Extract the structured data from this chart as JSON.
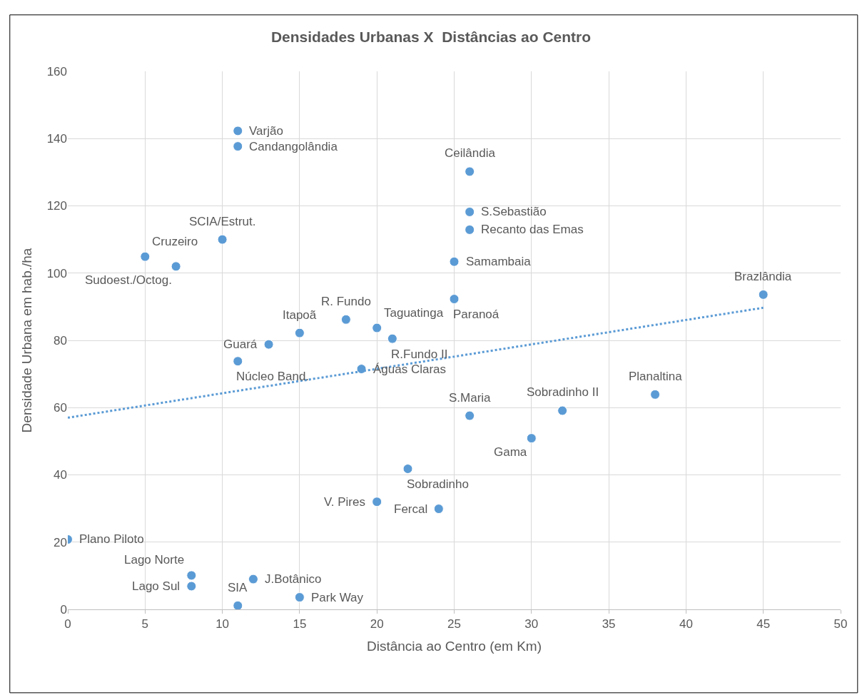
{
  "chart_data": {
    "type": "scatter",
    "title": "Densidades Urbanas X  Distâncias ao Centro",
    "xlabel": "Distância ao Centro (em Km)",
    "ylabel": "Densidade Urbana em hab./ha",
    "xlim": [
      0,
      50
    ],
    "xticks": [
      0,
      5,
      10,
      15,
      20,
      25,
      30,
      35,
      40,
      45,
      50
    ],
    "ylim": [
      0,
      160
    ],
    "yticks": [
      0,
      20,
      40,
      60,
      80,
      100,
      120,
      140,
      160
    ],
    "grid": true,
    "marker": "circle",
    "series": [
      {
        "color": "#5b9bd5",
        "x": [
          0,
          5,
          7,
          10,
          11,
          11,
          13,
          11,
          15,
          18,
          20,
          21,
          19,
          25,
          25,
          26,
          26,
          26,
          45,
          38,
          32,
          26,
          30,
          22,
          20,
          24,
          8,
          8,
          12,
          11,
          15
        ],
        "values": [
          20.8,
          104.9,
          102.0,
          110.0,
          142.3,
          137.7,
          78.8,
          73.8,
          82.2,
          86.2,
          83.7,
          80.5,
          71.5,
          92.3,
          103.4,
          112.9,
          118.2,
          130.2,
          93.6,
          63.9,
          59.1,
          57.6,
          50.9,
          41.8,
          32.0,
          29.9,
          10.1,
          6.9,
          9.0,
          1.1,
          3.6
        ]
      },
      {
        "type": "line",
        "color": "#5b9bd5",
        "line_style": "dotted",
        "marker": "none",
        "x": [
          0,
          45
        ],
        "values": [
          57.0,
          89.7
        ]
      }
    ],
    "annotations": [
      {
        "text": "Plano Piloto",
        "x": 0,
        "y": 20.8
      },
      {
        "text": "Cruzeiro",
        "x": 5,
        "y": 104.9
      },
      {
        "text": "Sudoest./Octog.",
        "x": 7,
        "y": 102.0
      },
      {
        "text": "SCIA/Estrut.",
        "x": 10,
        "y": 110.0
      },
      {
        "text": "Varjão",
        "x": 11,
        "y": 142.3
      },
      {
        "text": "Candangolândia",
        "x": 11,
        "y": 137.7
      },
      {
        "text": "Guará",
        "x": 13,
        "y": 78.8
      },
      {
        "text": "Núcleo Band.",
        "x": 11,
        "y": 73.8
      },
      {
        "text": "Itapoã",
        "x": 15,
        "y": 82.2
      },
      {
        "text": "R. Fundo",
        "x": 18,
        "y": 86.2
      },
      {
        "text": "Taguatinga",
        "x": 20,
        "y": 83.7
      },
      {
        "text": "R.Fundo II",
        "x": 21,
        "y": 80.5
      },
      {
        "text": "Águas Claras",
        "x": 19,
        "y": 71.5
      },
      {
        "text": "Paranoá",
        "x": 25,
        "y": 92.3
      },
      {
        "text": "Samambaia",
        "x": 25,
        "y": 103.4
      },
      {
        "text": "Recanto das Emas",
        "x": 26,
        "y": 112.9
      },
      {
        "text": "S.Sebastião",
        "x": 26,
        "y": 118.2
      },
      {
        "text": "Ceilândia",
        "x": 26,
        "y": 130.2
      },
      {
        "text": "Brazlândia",
        "x": 45,
        "y": 93.6
      },
      {
        "text": "Planaltina",
        "x": 38,
        "y": 63.9
      },
      {
        "text": "Sobradinho II",
        "x": 32,
        "y": 59.1
      },
      {
        "text": "S.Maria",
        "x": 26,
        "y": 57.6
      },
      {
        "text": "Gama",
        "x": 30,
        "y": 50.9
      },
      {
        "text": "Sobradinho",
        "x": 22,
        "y": 41.8
      },
      {
        "text": "V. Pires",
        "x": 20,
        "y": 32.0
      },
      {
        "text": "Fercal",
        "x": 24,
        "y": 29.9
      },
      {
        "text": "Lago Norte",
        "x": 8,
        "y": 10.1
      },
      {
        "text": "Lago Sul",
        "x": 8,
        "y": 6.9
      },
      {
        "text": "J.Botânico",
        "x": 12,
        "y": 9.0
      },
      {
        "text": "SIA",
        "x": 11,
        "y": 1.1
      },
      {
        "text": "Park Way",
        "x": 15,
        "y": 3.6
      }
    ]
  }
}
